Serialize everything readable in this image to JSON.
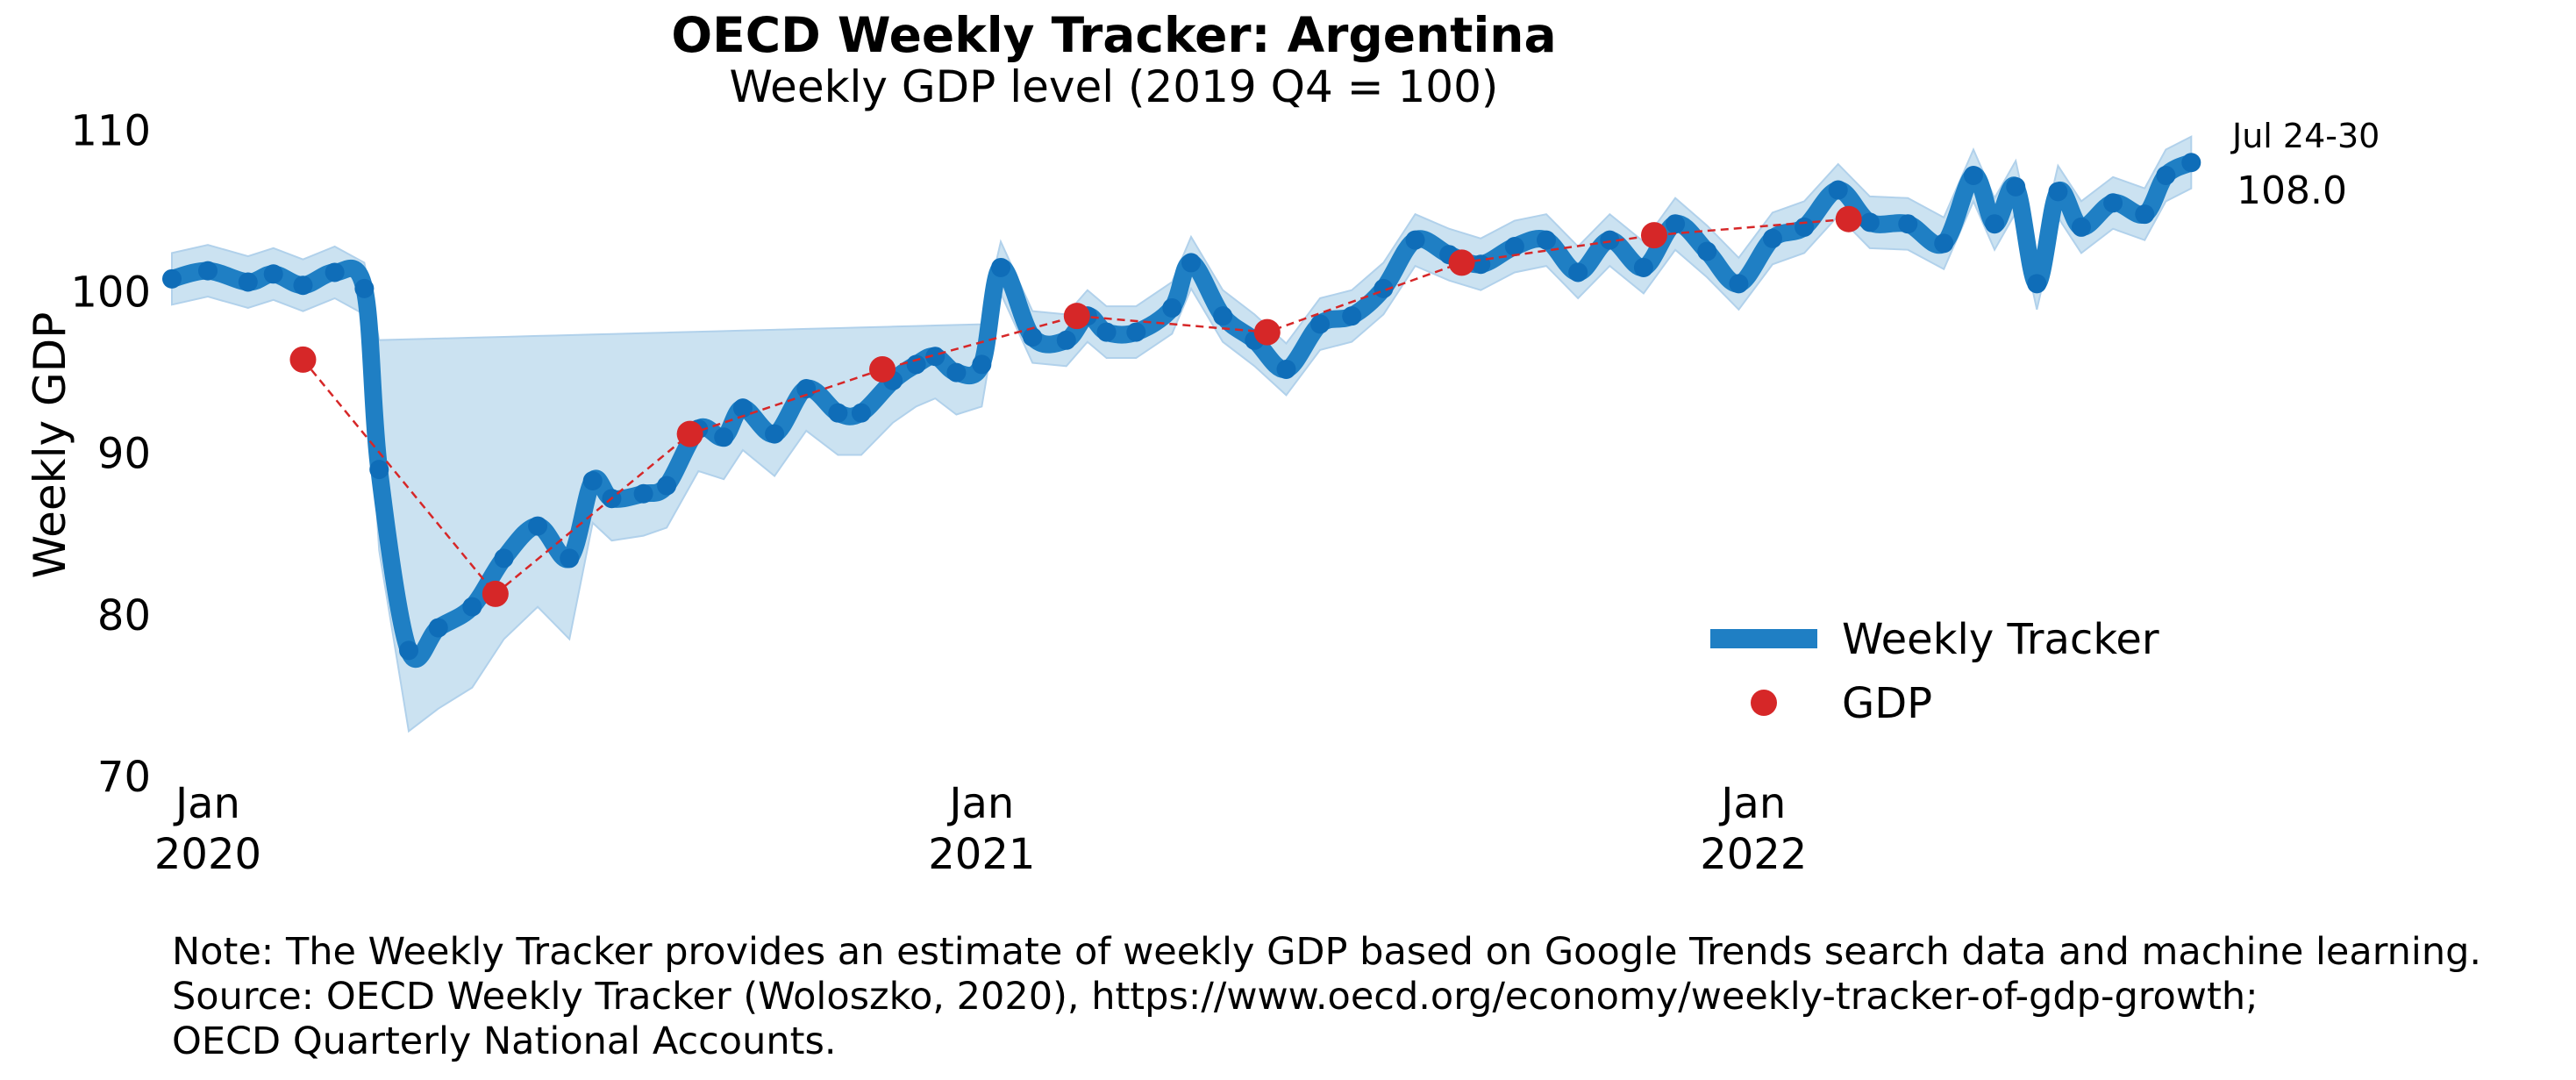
{
  "title": "OECD Weekly Tracker: Argentina",
  "subtitle": "Weekly GDP level (2019 Q4 = 100)",
  "notes": [
    "Note: The Weekly Tracker provides an estimate of weekly GDP based on Google Trends search data and machine learning.",
    "Source: OECD Weekly Tracker (Woloszko, 2020), https://www.oecd.org/economy/weekly-tracker-of-gdp-growth;",
    "OECD Quarterly National Accounts."
  ],
  "colors": {
    "tracker": "#1f7fc4",
    "tracker_dots": "#0f6db8",
    "band": "#c6dff0",
    "gdp": "#d62728"
  },
  "chart_data": {
    "type": "line",
    "title": "OECD Weekly Tracker: Argentina",
    "subtitle": "Weekly GDP level (2019 Q4 = 100)",
    "ylabel": "Weekly GDP",
    "ylim": [
      70,
      111
    ],
    "xlim": [
      "2019-12-15",
      "2022-08-05"
    ],
    "yticks": [
      70,
      80,
      90,
      100,
      110
    ],
    "xticks": [
      {
        "date": "2020-01-01",
        "label_month": "Jan",
        "label_year": "2020"
      },
      {
        "date": "2021-01-01",
        "label_month": "Jan",
        "label_year": "2021"
      },
      {
        "date": "2022-01-01",
        "label_month": "Jan",
        "label_year": "2022"
      }
    ],
    "grid": false,
    "legend": "lower-right",
    "end_annotation": {
      "date_label": "Jul 24-30",
      "value_label": "108.0"
    },
    "series": [
      {
        "name": "Weekly Tracker",
        "style": "line",
        "points": [
          [
            "2019-12-15",
            100.8
          ],
          [
            "2020-01-01",
            101.3
          ],
          [
            "2020-01-20",
            100.6
          ],
          [
            "2020-02-01",
            101.1
          ],
          [
            "2020-02-15",
            100.4
          ],
          [
            "2020-03-01",
            101.2
          ],
          [
            "2020-03-15",
            100.2
          ],
          [
            "2020-03-22",
            89
          ],
          [
            "2020-04-05",
            77.8
          ],
          [
            "2020-04-19",
            79.2
          ],
          [
            "2020-05-05",
            80.5
          ],
          [
            "2020-05-20",
            83.5
          ],
          [
            "2020-06-05",
            85.5
          ],
          [
            "2020-06-20",
            83.5
          ],
          [
            "2020-07-01",
            88.3
          ],
          [
            "2020-07-10",
            87.2
          ],
          [
            "2020-07-25",
            87.5
          ],
          [
            "2020-08-05",
            88
          ],
          [
            "2020-08-20",
            91.5
          ],
          [
            "2020-09-01",
            91
          ],
          [
            "2020-09-10",
            92.8
          ],
          [
            "2020-09-25",
            91.2
          ],
          [
            "2020-10-10",
            94
          ],
          [
            "2020-10-25",
            92.5
          ],
          [
            "2020-11-05",
            92.5
          ],
          [
            "2020-11-20",
            94.5
          ],
          [
            "2020-12-01",
            95.5
          ],
          [
            "2020-12-10",
            96
          ],
          [
            "2020-12-20",
            95
          ],
          [
            "2021-01-01",
            95.5
          ],
          [
            "2021-01-10",
            101.5
          ],
          [
            "2021-01-25",
            97.2
          ],
          [
            "2021-02-10",
            97
          ],
          [
            "2021-02-20",
            98.5
          ],
          [
            "2021-03-01",
            97.5
          ],
          [
            "2021-03-15",
            97.5
          ],
          [
            "2021-04-01",
            99
          ],
          [
            "2021-04-10",
            101.8
          ],
          [
            "2021-04-25",
            98.5
          ],
          [
            "2021-05-10",
            97
          ],
          [
            "2021-05-25",
            95.2
          ],
          [
            "2021-06-10",
            98
          ],
          [
            "2021-06-25",
            98.5
          ],
          [
            "2021-07-10",
            100.2
          ],
          [
            "2021-07-25",
            103.2
          ],
          [
            "2021-08-10",
            102.3
          ],
          [
            "2021-08-25",
            101.7
          ],
          [
            "2021-09-10",
            102.8
          ],
          [
            "2021-09-25",
            103.2
          ],
          [
            "2021-10-10",
            101.2
          ],
          [
            "2021-10-25",
            103.2
          ],
          [
            "2021-11-10",
            101.5
          ],
          [
            "2021-11-25",
            104.2
          ],
          [
            "2021-12-10",
            102.5
          ],
          [
            "2021-12-25",
            100.5
          ],
          [
            "2022-01-10",
            103.3
          ],
          [
            "2022-01-25",
            104
          ],
          [
            "2022-02-10",
            106.3
          ],
          [
            "2022-02-25",
            104.3
          ],
          [
            "2022-03-15",
            104.2
          ],
          [
            "2022-04-01",
            103
          ],
          [
            "2022-04-15",
            107.2
          ],
          [
            "2022-04-25",
            104.2
          ],
          [
            "2022-05-05",
            106.5
          ],
          [
            "2022-05-15",
            100.5
          ],
          [
            "2022-05-25",
            106.2
          ],
          [
            "2022-06-05",
            104
          ],
          [
            "2022-06-20",
            105.5
          ],
          [
            "2022-07-05",
            104.8
          ],
          [
            "2022-07-15",
            107.2
          ],
          [
            "2022-07-27",
            108.0
          ]
        ]
      },
      {
        "name": "GDP",
        "style": "markers",
        "points": [
          [
            "2020-02-15",
            95.8
          ],
          [
            "2020-05-16",
            81.3
          ],
          [
            "2020-08-16",
            91.2
          ],
          [
            "2020-11-15",
            95.2
          ],
          [
            "2021-02-15",
            98.5
          ],
          [
            "2021-05-16",
            97.5
          ],
          [
            "2021-08-16",
            101.8
          ],
          [
            "2021-11-15",
            103.5
          ],
          [
            "2022-02-15",
            104.5
          ]
        ]
      }
    ]
  }
}
